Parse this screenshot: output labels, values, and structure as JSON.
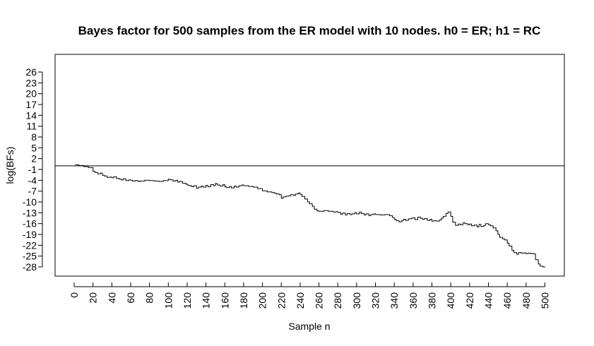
{
  "chart_data": {
    "type": "line",
    "title": "Bayes factor for 500 samples from the ER model with 10 nodes. h0 = ER; h1 = RC",
    "xlabel": "Sample n",
    "ylabel": "log(BFs)",
    "xlim": [
      0,
      500
    ],
    "ylim": [
      -28,
      26
    ],
    "x_ticks": [
      0,
      20,
      40,
      60,
      80,
      100,
      120,
      140,
      160,
      180,
      200,
      220,
      240,
      260,
      280,
      300,
      320,
      340,
      360,
      380,
      400,
      420,
      440,
      460,
      480,
      500
    ],
    "y_ticks": [
      26,
      23,
      20,
      17,
      14,
      11,
      8,
      5,
      2,
      -1,
      -4,
      -7,
      -10,
      -13,
      -16,
      -19,
      -22,
      -25,
      -28
    ],
    "reference_line": {
      "y": 0
    },
    "grid": false,
    "legend": "none",
    "line_color": "#000000",
    "series": [
      {
        "x": [
          1,
          5,
          10,
          15,
          20,
          22,
          25,
          28,
          30,
          32,
          35,
          38,
          40,
          42,
          45,
          48,
          50,
          52,
          55,
          58,
          60,
          62,
          65,
          68,
          70,
          75,
          80,
          85,
          90,
          95,
          100,
          102,
          105,
          108,
          110,
          112,
          115,
          118,
          120,
          122,
          125,
          127,
          130,
          132,
          135,
          137,
          140,
          142,
          145,
          148,
          150,
          152,
          155,
          158,
          160,
          162,
          165,
          167,
          170,
          172,
          175,
          178,
          180,
          185,
          190,
          195,
          200,
          205,
          210,
          213,
          215,
          218,
          220,
          222,
          225,
          228,
          230,
          233,
          235,
          238,
          240,
          242,
          245,
          248,
          250,
          253,
          255,
          258,
          260,
          265,
          270,
          275,
          278,
          280,
          283,
          285,
          288,
          290,
          293,
          295,
          298,
          300,
          303,
          305,
          308,
          310,
          313,
          315,
          318,
          320,
          325,
          330,
          335,
          338,
          340,
          342,
          345,
          348,
          350,
          352,
          355,
          358,
          360,
          362,
          365,
          368,
          370,
          372,
          375,
          378,
          380,
          382,
          385,
          388,
          390,
          392,
          395,
          397,
          400,
          402,
          405,
          408,
          410,
          413,
          415,
          418,
          420,
          422,
          425,
          428,
          430,
          432,
          435,
          437,
          440,
          442,
          445,
          448,
          450,
          452,
          455,
          457,
          460,
          462,
          465,
          467,
          470,
          472,
          475,
          478,
          480,
          482,
          485,
          488,
          490,
          493,
          495,
          498,
          500
        ],
        "y": [
          0.3,
          0.1,
          -0.2,
          -0.5,
          -1.5,
          -1.8,
          -2.2,
          -2.0,
          -2.6,
          -2.8,
          -3.2,
          -3.1,
          -3.3,
          -3.0,
          -3.5,
          -3.7,
          -3.9,
          -3.6,
          -4.1,
          -3.9,
          -4.0,
          -4.2,
          -4.1,
          -4.3,
          -4.2,
          -4.0,
          -4.1,
          -4.2,
          -4.3,
          -4.1,
          -3.7,
          -3.9,
          -4.2,
          -4.0,
          -4.5,
          -4.3,
          -4.8,
          -5.0,
          -5.3,
          -5.5,
          -5.8,
          -5.5,
          -6.2,
          -5.9,
          -5.6,
          -5.9,
          -5.4,
          -5.8,
          -5.2,
          -5.5,
          -4.9,
          -5.3,
          -5.6,
          -5.2,
          -5.8,
          -6.0,
          -5.7,
          -6.1,
          -5.6,
          -5.9,
          -5.5,
          -5.3,
          -5.5,
          -5.7,
          -5.9,
          -6.3,
          -6.9,
          -7.2,
          -7.4,
          -7.6,
          -7.8,
          -8.0,
          -9.0,
          -8.6,
          -8.4,
          -8.3,
          -8.0,
          -8.2,
          -7.8,
          -7.5,
          -7.9,
          -8.5,
          -9.2,
          -10.0,
          -10.5,
          -11.2,
          -12.0,
          -12.5,
          -12.6,
          -12.4,
          -12.6,
          -12.8,
          -12.7,
          -12.9,
          -13.4,
          -13.1,
          -13.6,
          -13.2,
          -13.5,
          -13.3,
          -13.0,
          -13.3,
          -12.8,
          -13.2,
          -13.6,
          -13.3,
          -13.8,
          -13.5,
          -13.3,
          -13.5,
          -13.6,
          -13.5,
          -13.8,
          -14.3,
          -14.8,
          -15.2,
          -15.5,
          -15.1,
          -14.8,
          -15.1,
          -14.7,
          -14.5,
          -14.4,
          -14.9,
          -14.2,
          -14.5,
          -14.8,
          -14.6,
          -15.1,
          -14.8,
          -15.3,
          -15.2,
          -15.3,
          -15.0,
          -14.5,
          -14.0,
          -13.2,
          -12.8,
          -14.0,
          -15.6,
          -16.5,
          -16.1,
          -16.3,
          -15.8,
          -16.0,
          -16.3,
          -16.1,
          -16.6,
          -16.4,
          -16.9,
          -16.2,
          -16.8,
          -16.5,
          -16.0,
          -16.3,
          -16.6,
          -17.2,
          -18.0,
          -19.0,
          -19.8,
          -20.2,
          -20.5,
          -21.4,
          -22.2,
          -23.4,
          -24.0,
          -24.5,
          -24.0,
          -24.2,
          -24.1,
          -24.3,
          -24.2,
          -24.3,
          -24.4,
          -26.0,
          -27.2,
          -27.8,
          -28.0,
          -27.9
        ]
      }
    ]
  }
}
